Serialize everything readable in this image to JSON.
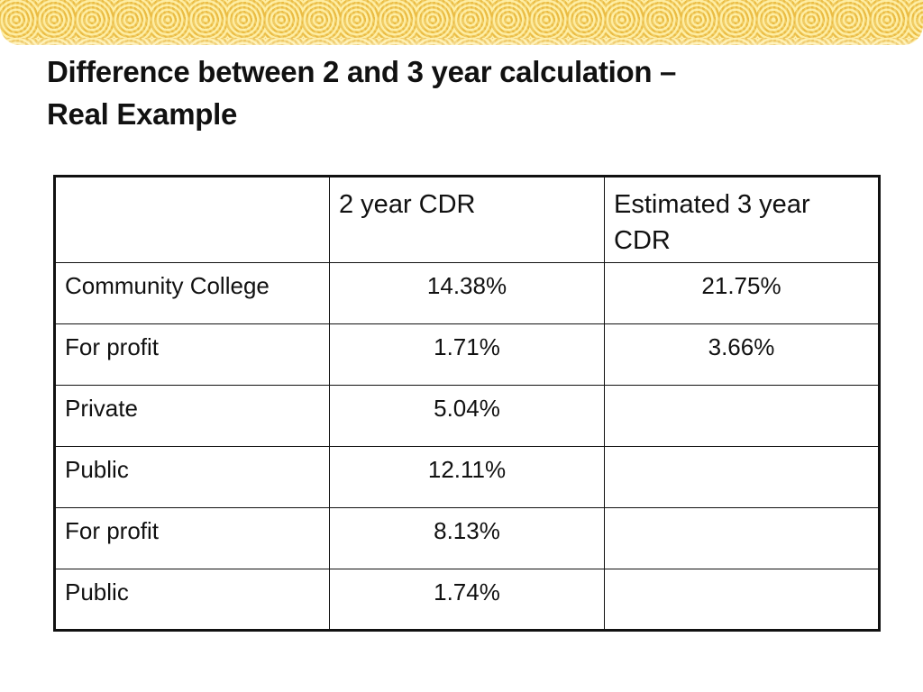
{
  "slide": {
    "title_line1": "Difference between 2 and 3 year calculation –",
    "title_line2": "Real Example"
  },
  "table": {
    "header": [
      "",
      "2 year CDR",
      "Estimated 3 year CDR"
    ],
    "rows": [
      {
        "label": "Community College",
        "two_year": "14.38%",
        "three_year": "21.75%"
      },
      {
        "label": "For profit",
        "two_year": "1.71%",
        "three_year": "3.66%"
      },
      {
        "label": "Private",
        "two_year": "5.04%",
        "three_year": ""
      },
      {
        "label": "Public",
        "two_year": "12.11%",
        "three_year": ""
      },
      {
        "label": "For profit",
        "two_year": "8.13%",
        "three_year": ""
      },
      {
        "label": "Public",
        "two_year": "1.74%",
        "three_year": ""
      }
    ]
  },
  "colors": {
    "banner": "#f3cf5a",
    "text": "#111111",
    "background": "#ffffff"
  }
}
